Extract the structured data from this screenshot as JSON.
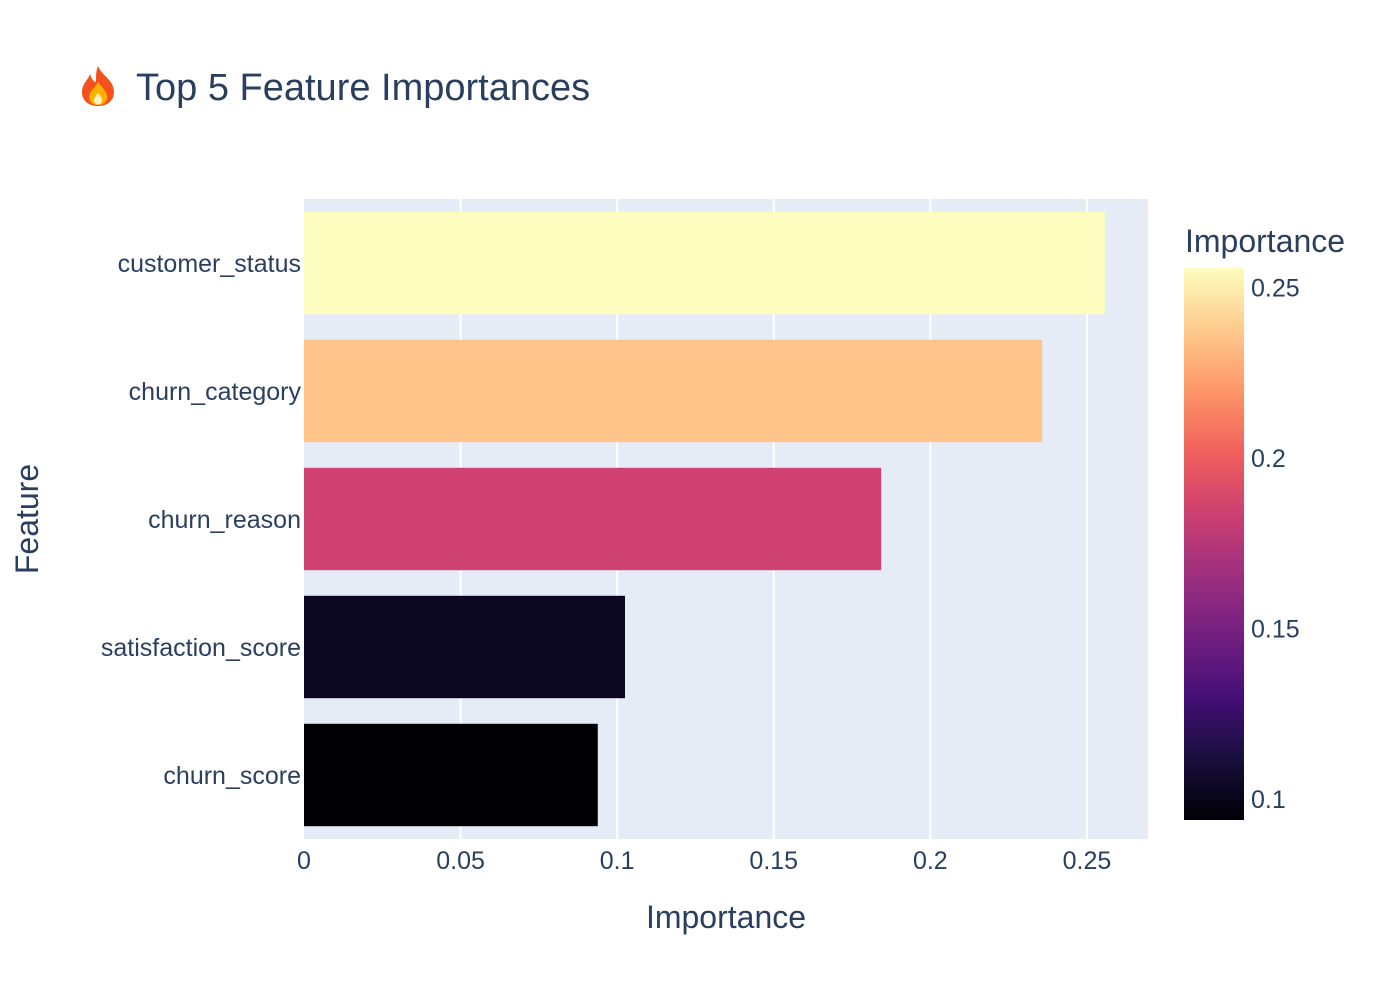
{
  "chart_data": {
    "type": "bar",
    "orientation": "horizontal",
    "title": "Top 5 Feature Importances",
    "title_icon": "fire-icon",
    "xlabel": "Importance",
    "ylabel": "Feature",
    "categories": [
      "customer_status",
      "churn_category",
      "churn_reason",
      "satisfaction_score",
      "churn_score"
    ],
    "values": [
      0.2557,
      0.2357,
      0.1843,
      0.1025,
      0.0938
    ],
    "xlim": [
      0,
      0.2695
    ],
    "x_ticks": [
      0,
      0.05,
      0.1,
      0.15,
      0.2,
      0.25
    ],
    "x_tick_labels": [
      "0",
      "0.05",
      "0.1",
      "0.15",
      "0.2",
      "0.25"
    ],
    "grid": true,
    "plot_background": "#e5ecf6",
    "colorscale": "magma",
    "colorbar": {
      "title": "Importance",
      "range": [
        0.0938,
        0.2557
      ],
      "ticks": [
        0.1,
        0.15,
        0.2,
        0.25
      ],
      "tick_labels": [
        "0.1",
        "0.15",
        "0.2",
        "0.25"
      ],
      "placement": "right"
    },
    "colors": {
      "text": "#2a3f5f",
      "gridline": "#ffffff"
    }
  }
}
